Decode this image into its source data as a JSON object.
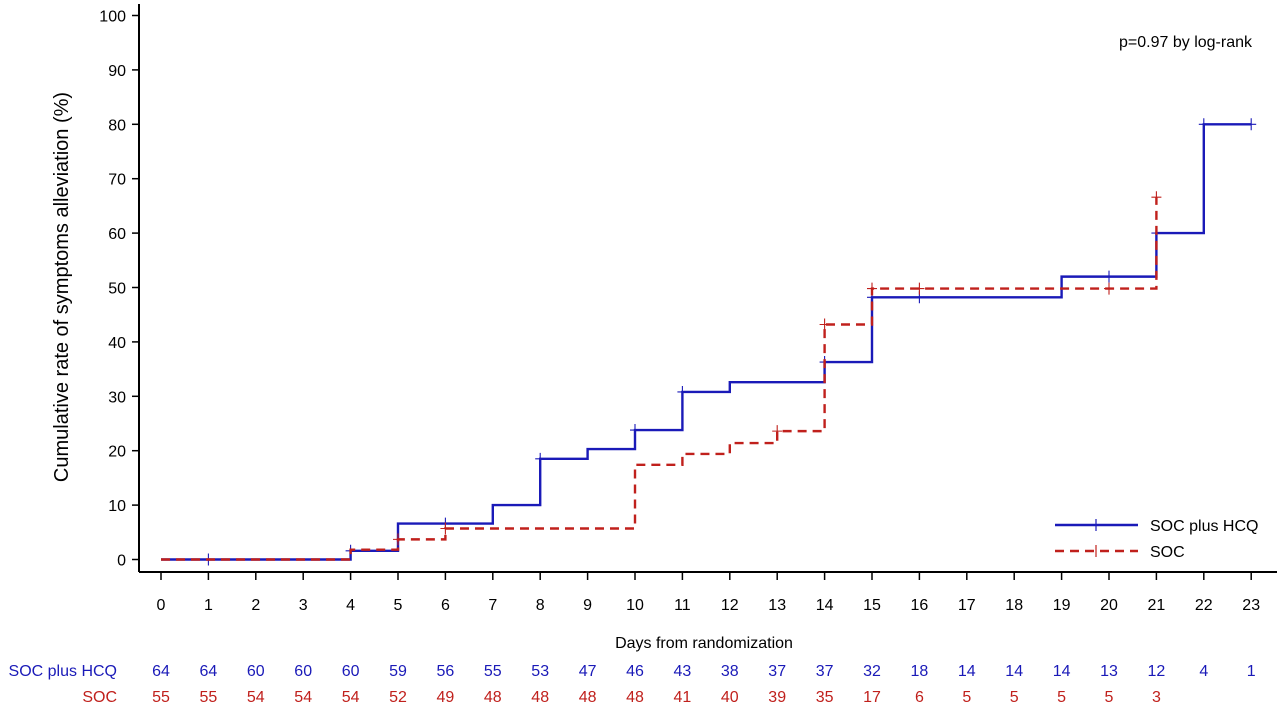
{
  "chart_data": {
    "type": "line",
    "subtype": "kaplan-meier-step",
    "xlabel": "Days from randomization",
    "ylabel": "Cumulative rate of symptoms alleviation (%)",
    "xlim": [
      0,
      23
    ],
    "ylim": [
      0,
      100
    ],
    "x_ticks": [
      "0",
      "1",
      "2",
      "3",
      "4",
      "5",
      "6",
      "7",
      "8",
      "9",
      "10",
      "11",
      "12",
      "13",
      "14",
      "15",
      "16",
      "17",
      "18",
      "19",
      "20",
      "21",
      "22",
      "23"
    ],
    "y_ticks": [
      "0",
      "10",
      "20",
      "30",
      "40",
      "50",
      "60",
      "70",
      "80",
      "90",
      "100"
    ],
    "annotation": "p=0.97 by log-rank",
    "legend_position": "bottom-right",
    "series": [
      {
        "name": "SOC plus HCQ",
        "color": "#1a1ab8",
        "dash": "solid",
        "steps": [
          [
            0,
            0
          ],
          [
            4,
            1.6
          ],
          [
            5,
            6.6
          ],
          [
            7,
            10
          ],
          [
            8,
            18.5
          ],
          [
            9,
            20.3
          ],
          [
            10,
            23.8
          ],
          [
            11,
            30.8
          ],
          [
            12,
            32.6
          ],
          [
            14,
            36.3
          ],
          [
            15,
            48.2
          ],
          [
            19,
            52
          ],
          [
            21,
            60
          ],
          [
            22,
            80
          ],
          [
            23,
            80
          ]
        ],
        "censor_marks": [
          [
            1,
            0
          ],
          [
            4,
            1.6
          ],
          [
            6,
            6.6
          ],
          [
            8,
            18.5
          ],
          [
            10,
            23.8
          ],
          [
            11,
            30.8
          ],
          [
            14,
            36.3
          ],
          [
            15,
            48.2
          ],
          [
            16,
            48.2
          ],
          [
            20,
            52
          ],
          [
            21,
            60
          ],
          [
            22,
            80
          ],
          [
            23,
            80
          ]
        ]
      },
      {
        "name": "SOC",
        "color": "#c0201c",
        "dash": "dashed",
        "steps": [
          [
            0,
            0
          ],
          [
            4,
            1.8
          ],
          [
            5,
            3.7
          ],
          [
            6,
            5.7
          ],
          [
            10,
            17.4
          ],
          [
            11,
            19.4
          ],
          [
            12,
            21.4
          ],
          [
            13,
            23.6
          ],
          [
            14,
            43.2
          ],
          [
            15,
            49.8
          ],
          [
            21,
            66.6
          ]
        ],
        "censor_marks": [
          [
            5,
            3.7
          ],
          [
            6,
            5.7
          ],
          [
            13,
            23.6
          ],
          [
            14,
            43.2
          ],
          [
            15,
            49.8
          ],
          [
            16,
            49.8
          ],
          [
            20,
            49.8
          ],
          [
            21,
            66.6
          ]
        ]
      }
    ],
    "risk_table": {
      "rows": [
        {
          "label": "SOC plus HCQ",
          "color": "#1a1ab8",
          "values": [
            "64",
            "64",
            "60",
            "60",
            "60",
            "59",
            "56",
            "55",
            "53",
            "47",
            "46",
            "43",
            "38",
            "37",
            "37",
            "32",
            "18",
            "14",
            "14",
            "14",
            "13",
            "12",
            "4",
            "1"
          ]
        },
        {
          "label": "SOC",
          "color": "#c0201c",
          "values": [
            "55",
            "55",
            "54",
            "54",
            "54",
            "52",
            "49",
            "48",
            "48",
            "48",
            "48",
            "41",
            "40",
            "39",
            "35",
            "17",
            "6",
            "5",
            "5",
            "5",
            "5",
            "3"
          ]
        }
      ]
    }
  }
}
